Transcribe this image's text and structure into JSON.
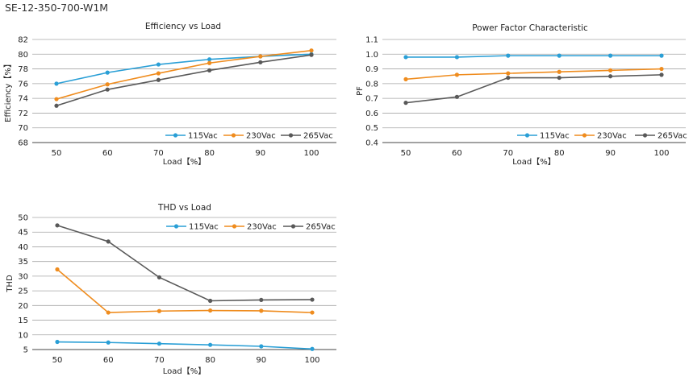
{
  "page_title": "SE-12-350-700-W1M",
  "chart_data": [
    {
      "type": "line",
      "title": "Efficiency vs Load",
      "xlabel": "Load【%】",
      "ylabel": "Efficiency【%】",
      "categories": [
        "50",
        "60",
        "70",
        "80",
        "90",
        "100"
      ],
      "ylim": [
        68,
        82
      ],
      "yticks": [
        "68",
        "70",
        "72",
        "74",
        "76",
        "78",
        "80",
        "82"
      ],
      "legend": "bottom-right",
      "grid": true,
      "series": [
        {
          "name": "115Vac",
          "color": "#2a9fd6",
          "values": [
            76.0,
            77.5,
            78.6,
            79.3,
            79.7,
            80.0
          ]
        },
        {
          "name": "230Vac",
          "color": "#ef8c1e",
          "values": [
            73.9,
            75.9,
            77.4,
            78.8,
            79.7,
            80.5
          ]
        },
        {
          "name": "265Vac",
          "color": "#595959",
          "values": [
            73.0,
            75.2,
            76.5,
            77.8,
            78.9,
            79.9
          ]
        }
      ]
    },
    {
      "type": "line",
      "title": "Power Factor Characteristic",
      "xlabel": "Load【%】",
      "ylabel": "PF",
      "categories": [
        "50",
        "60",
        "70",
        "80",
        "90",
        "100"
      ],
      "ylim": [
        0.4,
        1.1
      ],
      "yticks": [
        "0.4",
        "0.5",
        "0.6",
        "0.7",
        "0.8",
        "0.9",
        "1.0",
        "1.1"
      ],
      "legend": "bottom-right",
      "grid": true,
      "series": [
        {
          "name": "115Vac",
          "color": "#2a9fd6",
          "values": [
            0.98,
            0.98,
            0.99,
            0.99,
            0.99,
            0.99
          ]
        },
        {
          "name": "230Vac",
          "color": "#ef8c1e",
          "values": [
            0.83,
            0.86,
            0.87,
            0.88,
            0.89,
            0.9
          ]
        },
        {
          "name": "265Vac",
          "color": "#595959",
          "values": [
            0.67,
            0.71,
            0.84,
            0.84,
            0.85,
            0.86
          ]
        }
      ]
    },
    {
      "type": "line",
      "title": "THD vs Load",
      "xlabel": "Load【%】",
      "ylabel": "THD",
      "categories": [
        "50",
        "60",
        "70",
        "80",
        "90",
        "100"
      ],
      "ylim": [
        5,
        50
      ],
      "yticks": [
        "5",
        "10",
        "15",
        "20",
        "25",
        "30",
        "35",
        "40",
        "45",
        "50"
      ],
      "legend": "top-right",
      "grid": true,
      "series": [
        {
          "name": "115Vac",
          "color": "#2a9fd6",
          "values": [
            7.6,
            7.4,
            7.0,
            6.6,
            6.1,
            5.2
          ]
        },
        {
          "name": "230Vac",
          "color": "#ef8c1e",
          "values": [
            32.3,
            17.6,
            18.1,
            18.3,
            18.2,
            17.6
          ]
        },
        {
          "name": "265Vac",
          "color": "#595959",
          "values": [
            47.3,
            41.8,
            29.6,
            21.6,
            21.9,
            22.0
          ]
        }
      ]
    }
  ]
}
